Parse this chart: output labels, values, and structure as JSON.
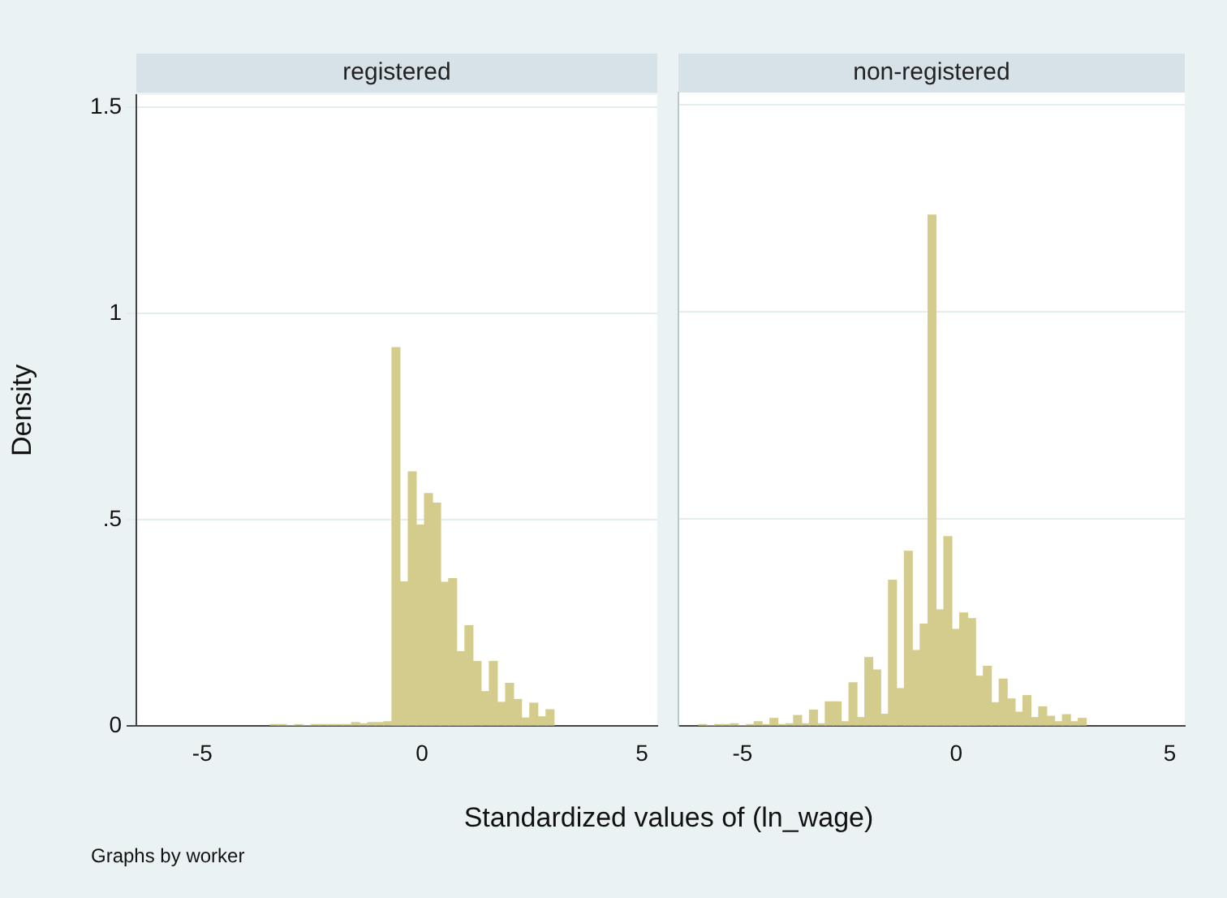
{
  "chart_data": [
    {
      "type": "histogram",
      "title": "registered",
      "xlabel": "Standardized values of (ln_wage)",
      "ylabel": "Density",
      "annotations": [
        "Graphs by worker"
      ],
      "bins": [
        -3.45,
        -3.27,
        -3.08,
        -2.9,
        -2.71,
        -2.53,
        -2.34,
        -2.16,
        -1.98,
        -1.79,
        -1.61,
        -1.42,
        -1.24,
        -1.05,
        -0.87,
        -0.69,
        -0.5,
        -0.32,
        -0.13,
        0.05,
        0.24,
        0.42,
        0.6,
        0.79,
        0.97,
        1.16,
        1.34,
        1.53,
        1.71,
        1.9,
        2.08,
        2.26,
        2.45,
        2.63,
        2.82,
        3.0
      ],
      "values": [
        0.003,
        0.003,
        0,
        0.003,
        0,
        0.003,
        0.003,
        0.003,
        0.003,
        0.003,
        0.008,
        0.005,
        0.008,
        0.008,
        0.01,
        0.917,
        0.349,
        0.616,
        0.487,
        0.563,
        0.54,
        0.348,
        0.357,
        0.18,
        0.243,
        0.156,
        0.083,
        0.156,
        0.057,
        0.103,
        0.064,
        0.019,
        0.055,
        0.022,
        0.039
      ],
      "color": "#d3cc8c",
      "xlim": [
        -6.5,
        5.35
      ],
      "ylim": [
        0,
        1.53
      ],
      "xticks": [
        -5,
        0,
        5
      ],
      "yticks": [
        0,
        {
          "value": 0.5,
          "label": ".5"
        },
        1,
        1.5
      ],
      "grid": "y"
    },
    {
      "type": "histogram",
      "title": "non-registered",
      "bins": [
        -6.02,
        -5.84,
        -5.65,
        -5.47,
        -5.28,
        -5.1,
        -4.91,
        -4.73,
        -4.54,
        -4.36,
        -4.17,
        -3.99,
        -3.8,
        -3.62,
        -3.43,
        -3.25,
        -3.06,
        -2.88,
        -2.69,
        -2.51,
        -2.32,
        -2.14,
        -1.95,
        -1.77,
        -1.58,
        -1.4,
        -1.21,
        -1.03,
        -0.84,
        -0.66,
        -0.47,
        -0.29,
        -0.1,
        0.08,
        0.27,
        0.45,
        0.64,
        0.82,
        1.01,
        1.19,
        1.38,
        1.56,
        1.75,
        1.93,
        2.12,
        2.3,
        2.49,
        2.67,
        2.86,
        3.04
      ],
      "values": [
        0.003,
        0,
        0.003,
        0.003,
        0.005,
        0,
        0.003,
        0.01,
        0.003,
        0.018,
        0.003,
        0.005,
        0.025,
        0.005,
        0.038,
        0.005,
        0.058,
        0.058,
        0.01,
        0.104,
        0.02,
        0.165,
        0.135,
        0.028,
        0.352,
        0.09,
        0.422,
        0.182,
        0.246,
        1.234,
        0.28,
        0.457,
        0.233,
        0.273,
        0.259,
        0.12,
        0.144,
        0.056,
        0.113,
        0.065,
        0.033,
        0.073,
        0.02,
        0.046,
        0.023,
        0.01,
        0.027,
        0.01,
        0.018
      ],
      "color": "#d3cc8c",
      "xlim": [
        -6.5,
        5.35
      ],
      "ylim": [
        0,
        1.53
      ],
      "xticks": [
        -5,
        0,
        5
      ],
      "yticks": [
        {
          "value": 0,
          "label": null
        },
        {
          "value": 0.5,
          "label": null
        },
        {
          "value": 1,
          "label": null
        },
        {
          "value": 1.5,
          "label": null
        }
      ],
      "grid": "y",
      "tick_labels": "x"
    }
  ]
}
